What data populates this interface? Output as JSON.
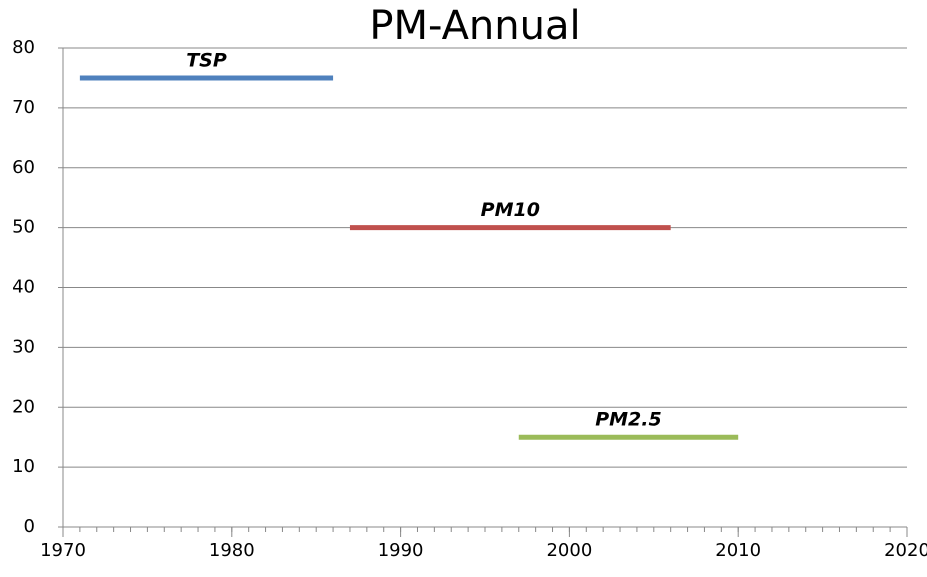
{
  "chart_data": {
    "type": "line",
    "title": "PM-Annual",
    "series": [
      {
        "name": "TSP",
        "color": "#4f81bd",
        "x": [
          1971,
          1986
        ],
        "values": [
          75,
          75
        ]
      },
      {
        "name": "PM10",
        "color": "#c0504d",
        "x": [
          1987,
          2006
        ],
        "values": [
          50,
          50
        ]
      },
      {
        "name": "PM2.5",
        "color": "#9bbb59",
        "x": [
          1997,
          2010
        ],
        "values": [
          15,
          15
        ]
      }
    ],
    "xlim": [
      1970,
      2020
    ],
    "xticks": [
      1970,
      1980,
      1990,
      2000,
      2010,
      2020
    ],
    "xminorticks": [
      1970,
      1971,
      1972,
      1973,
      1974,
      1975,
      1976,
      1977,
      1978,
      1979,
      1980,
      1981,
      1982,
      1983,
      1984,
      1985,
      1986,
      1987,
      1988,
      1989,
      1990,
      1991,
      1992,
      1993,
      1994,
      1995,
      1996,
      1997,
      1998,
      1999,
      2000,
      2001,
      2002,
      2003,
      2004,
      2005,
      2006,
      2007,
      2008,
      2009,
      2010,
      2011,
      2012,
      2013,
      2014,
      2015,
      2016,
      2017,
      2018,
      2019,
      2020
    ],
    "ylim": [
      0,
      80
    ],
    "yticks": [
      0,
      10,
      20,
      30,
      40,
      50,
      60,
      70,
      80
    ],
    "grid": true
  }
}
